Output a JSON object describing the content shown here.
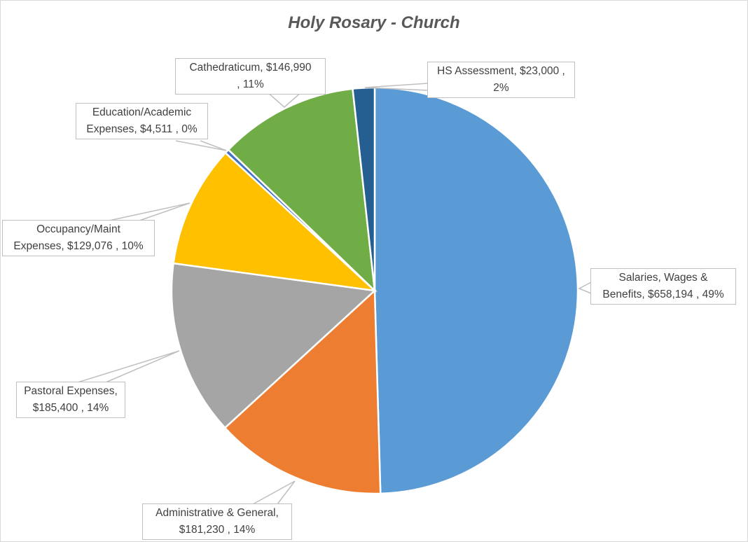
{
  "chart_data": {
    "type": "pie",
    "title": "Holy Rosary - Church",
    "start_angle": "top, clockwise",
    "slices": [
      {
        "name": "Salaries, Wages & Benefits",
        "value": 658194,
        "value_label": "$658,194",
        "percent": "49%",
        "color": "#5B9BD5"
      },
      {
        "name": "Administrative & General",
        "value": 181230,
        "value_label": "$181,230",
        "percent": "14%",
        "color": "#ED7D31"
      },
      {
        "name": "Pastoral Expenses",
        "value": 185400,
        "value_label": "$185,400",
        "percent": "14%",
        "color": "#A5A5A5"
      },
      {
        "name": "Occupancy/Maint Expenses",
        "value": 129076,
        "value_label": "$129,076",
        "percent": "10%",
        "color": "#FFC000"
      },
      {
        "name": "Education/Academic Expenses",
        "value": 4511,
        "value_label": "$4,511",
        "percent": "0%",
        "color": "#4472C4"
      },
      {
        "name": "Cathedraticum",
        "value": 146990,
        "value_label": "$146,990",
        "percent": "11%",
        "color": "#70AD47"
      },
      {
        "name": "HS Assessment",
        "value": 23000,
        "value_label": "$23,000",
        "percent": "2%",
        "color": "#255E91"
      }
    ]
  },
  "labels": {
    "salaries_1": "Salaries, Wages &",
    "salaries_2": "Benefits,  $658,194 , 49%",
    "admin_1": "Administrative & General,",
    "admin_2": "$181,230 , 14%",
    "pastoral_1": "Pastoral Expenses,",
    "pastoral_2": "$185,400 , 14%",
    "occupancy_1": "Occupancy/Maint",
    "occupancy_2": "Expenses,  $129,076 , 10%",
    "education_1": "Education/Academic",
    "education_2": "Expenses,  $4,511 , 0%",
    "cath_1": "Cathedraticum,  $146,990",
    "cath_2": ", 11%",
    "hs_1": "HS Assessment,  $23,000 ,",
    "hs_2": "2%"
  }
}
